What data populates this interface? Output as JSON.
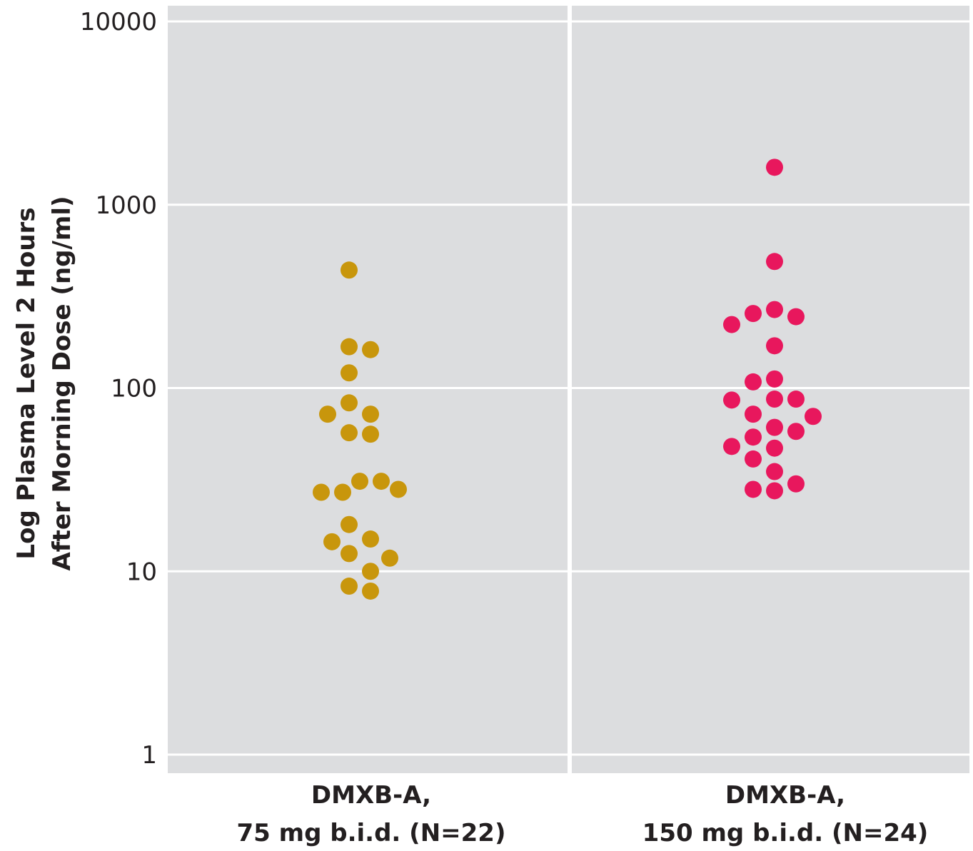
{
  "chart_data": {
    "type": "scatter",
    "title": "",
    "ylabel_lines": [
      "Log Plasma Level 2 Hours",
      "After Morning Dose (ng/ml)"
    ],
    "xlabel": "",
    "y_scale": "log",
    "ylim": [
      0.8,
      12000
    ],
    "y_ticks": [
      1,
      10,
      100,
      1000,
      10000
    ],
    "y_tick_labels": [
      "1",
      "10",
      "100",
      "1000",
      "10000"
    ],
    "grid": true,
    "background_color": "#dcdddf",
    "grid_color": "#ffffff",
    "categories": [
      {
        "line1": "DMXB-A,",
        "line2": "75 mg b.i.d. (N=22)"
      },
      {
        "line1": "DMXB-A,",
        "line2": "150 mg b.i.d. (N=24)"
      }
    ],
    "series": [
      {
        "category_index": 0,
        "color": "#c8960c",
        "points": [
          {
            "slot": 0,
            "y": 440
          },
          {
            "slot": 0,
            "y": 168
          },
          {
            "slot": 1,
            "y": 162
          },
          {
            "slot": 0,
            "y": 121
          },
          {
            "slot": 0,
            "y": 83
          },
          {
            "slot": -1,
            "y": 72
          },
          {
            "slot": 1,
            "y": 72
          },
          {
            "slot": 0,
            "y": 57
          },
          {
            "slot": 1,
            "y": 56
          },
          {
            "slot": 0.5,
            "y": 31
          },
          {
            "slot": 1.5,
            "y": 31
          },
          {
            "slot": -1.3,
            "y": 27
          },
          {
            "slot": -0.3,
            "y": 27
          },
          {
            "slot": 2.3,
            "y": 28
          },
          {
            "slot": 0,
            "y": 18
          },
          {
            "slot": -0.8,
            "y": 14.5
          },
          {
            "slot": 1,
            "y": 15
          },
          {
            "slot": 0,
            "y": 12.5
          },
          {
            "slot": 1.9,
            "y": 11.8
          },
          {
            "slot": 1,
            "y": 10
          },
          {
            "slot": 0,
            "y": 8.3
          },
          {
            "slot": 1,
            "y": 7.8
          }
        ]
      },
      {
        "category_index": 1,
        "color": "#e8175d",
        "points": [
          {
            "slot": 0,
            "y": 1600
          },
          {
            "slot": 0,
            "y": 490
          },
          {
            "slot": -1,
            "y": 255
          },
          {
            "slot": 0,
            "y": 268
          },
          {
            "slot": 1,
            "y": 245
          },
          {
            "slot": -2,
            "y": 222
          },
          {
            "slot": 0,
            "y": 170
          },
          {
            "slot": -1,
            "y": 108
          },
          {
            "slot": 0,
            "y": 112
          },
          {
            "slot": -2,
            "y": 86
          },
          {
            "slot": 0,
            "y": 87
          },
          {
            "slot": 1,
            "y": 87
          },
          {
            "slot": -1,
            "y": 72
          },
          {
            "slot": 1.8,
            "y": 70
          },
          {
            "slot": 0,
            "y": 61
          },
          {
            "slot": 1,
            "y": 58
          },
          {
            "slot": -1,
            "y": 54
          },
          {
            "slot": -2,
            "y": 48
          },
          {
            "slot": 0,
            "y": 47
          },
          {
            "slot": -1,
            "y": 41
          },
          {
            "slot": 0,
            "y": 35
          },
          {
            "slot": 1,
            "y": 30
          },
          {
            "slot": -1,
            "y": 28
          },
          {
            "slot": 0,
            "y": 27.5
          }
        ]
      }
    ]
  }
}
